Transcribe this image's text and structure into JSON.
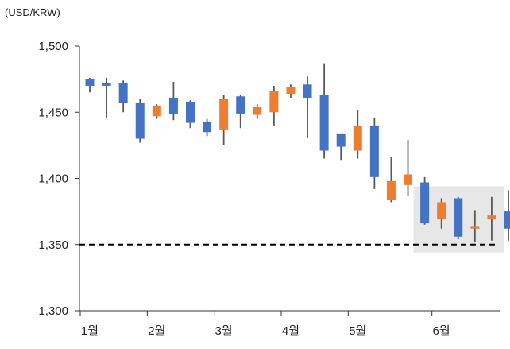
{
  "chart_data": {
    "type": "candlestick",
    "unit_label": "(USD/KRW)",
    "ylim": [
      1300,
      1500
    ],
    "yticks": [
      {
        "value": 1300,
        "label": "1,300"
      },
      {
        "value": 1350,
        "label": "1,350"
      },
      {
        "value": 1400,
        "label": "1,400"
      },
      {
        "value": 1450,
        "label": "1,450"
      },
      {
        "value": 1500,
        "label": "1,500"
      }
    ],
    "xticks": [
      {
        "index": 0,
        "label": "1월"
      },
      {
        "index": 4,
        "label": "2월"
      },
      {
        "index": 8,
        "label": "3월"
      },
      {
        "index": 12,
        "label": "4월"
      },
      {
        "index": 16,
        "label": "5월"
      },
      {
        "index": 21,
        "label": "6월"
      }
    ],
    "reference_line": {
      "value": 1350,
      "style": "dashed"
    },
    "highlight_range": {
      "from_index": 20,
      "to_index": 24,
      "y_from": 1344,
      "y_to": 1394
    },
    "colors": {
      "down": "#4472C4",
      "up": "#ED7D31",
      "wick": "#595959",
      "highlight": "#E7E7E7"
    },
    "candles": [
      {
        "open": 1475,
        "close": 1470,
        "high": 1476,
        "low": 1465
      },
      {
        "open": 1472,
        "close": 1470,
        "high": 1476,
        "low": 1446
      },
      {
        "open": 1472,
        "close": 1457,
        "high": 1474,
        "low": 1450
      },
      {
        "open": 1457,
        "close": 1430,
        "high": 1460,
        "low": 1427
      },
      {
        "open": 1447,
        "close": 1455,
        "high": 1456,
        "low": 1445
      },
      {
        "open": 1461,
        "close": 1449,
        "high": 1473,
        "low": 1444
      },
      {
        "open": 1458,
        "close": 1442,
        "high": 1459,
        "low": 1438
      },
      {
        "open": 1443,
        "close": 1435,
        "high": 1445,
        "low": 1432
      },
      {
        "open": 1437,
        "close": 1460,
        "high": 1463,
        "low": 1425
      },
      {
        "open": 1462,
        "close": 1449,
        "high": 1463,
        "low": 1438
      },
      {
        "open": 1448,
        "close": 1454,
        "high": 1456,
        "low": 1445
      },
      {
        "open": 1450,
        "close": 1466,
        "high": 1470,
        "low": 1440
      },
      {
        "open": 1464,
        "close": 1469,
        "high": 1471,
        "low": 1461
      },
      {
        "open": 1471,
        "close": 1461,
        "high": 1477,
        "low": 1431
      },
      {
        "open": 1463,
        "close": 1421,
        "high": 1487,
        "low": 1415
      },
      {
        "open": 1434,
        "close": 1424,
        "high": 1434,
        "low": 1414
      },
      {
        "open": 1421,
        "close": 1440,
        "high": 1452,
        "low": 1415
      },
      {
        "open": 1440,
        "close": 1401,
        "high": 1446,
        "low": 1392
      },
      {
        "open": 1384,
        "close": 1398,
        "high": 1416,
        "low": 1382
      },
      {
        "open": 1395,
        "close": 1403,
        "high": 1429,
        "low": 1387
      },
      {
        "open": 1397,
        "close": 1366,
        "high": 1401,
        "low": 1365
      },
      {
        "open": 1369,
        "close": 1382,
        "high": 1385,
        "low": 1362
      },
      {
        "open": 1385,
        "close": 1356,
        "high": 1386,
        "low": 1354
      },
      {
        "open": 1362,
        "close": 1364,
        "high": 1376,
        "low": 1352
      },
      {
        "open": 1369,
        "close": 1372,
        "high": 1386,
        "low": 1353
      },
      {
        "open": 1375,
        "close": 1362,
        "high": 1391,
        "low": 1353
      }
    ]
  }
}
